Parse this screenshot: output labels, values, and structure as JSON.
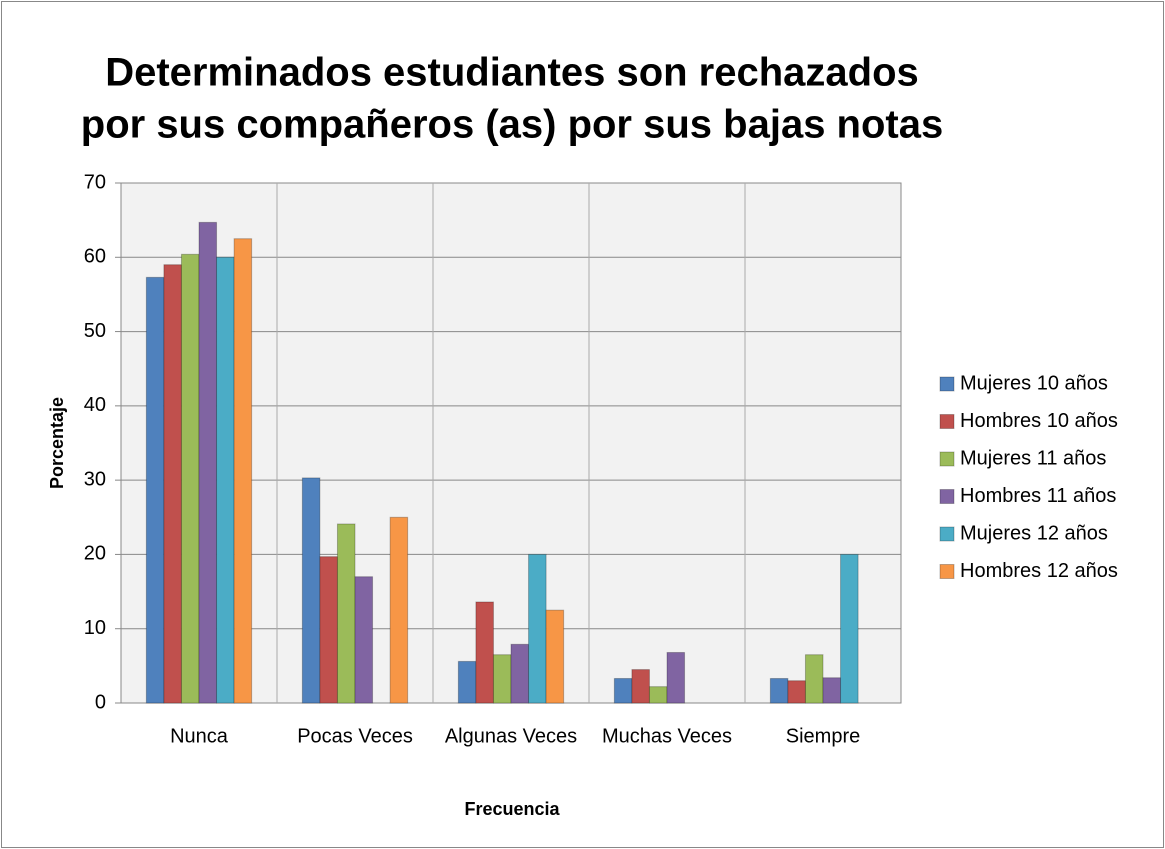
{
  "chart_data": {
    "type": "bar",
    "title": [
      "Determinados estudiantes son rechazados",
      "por sus compañeros (as) por sus bajas notas"
    ],
    "x_label": "Frecuencia",
    "y_label": "Porcentaje",
    "categories": [
      "Nunca",
      "Pocas Veces",
      "Algunas Veces",
      "Muchas Veces",
      "Siempre"
    ],
    "series": [
      {
        "name": "Mujeres 10 años",
        "color": "#4f81bd",
        "values": [
          57.3,
          30.3,
          5.6,
          3.3,
          3.3
        ]
      },
      {
        "name": "Hombres 10 años",
        "color": "#c0504d",
        "values": [
          59,
          19.7,
          13.6,
          4.5,
          3
        ]
      },
      {
        "name": "Mujeres 11 años",
        "color": "#9bbb59",
        "values": [
          60.4,
          24.1,
          6.5,
          2.2,
          6.5
        ]
      },
      {
        "name": "Hombres 11 años",
        "color": "#8064a2",
        "values": [
          64.7,
          17,
          7.9,
          6.8,
          3.4
        ]
      },
      {
        "name": "Mujeres 12 años",
        "color": "#4bacc6",
        "values": [
          60,
          0,
          20,
          0,
          20
        ]
      },
      {
        "name": "Hombres 12 años",
        "color": "#f79646",
        "values": [
          62.5,
          25,
          12.5,
          0,
          0
        ]
      }
    ],
    "ylim": [
      0,
      70
    ],
    "yticks": [
      0,
      10,
      20,
      30,
      40,
      50,
      60,
      70
    ],
    "grid": true,
    "legend": "right"
  }
}
